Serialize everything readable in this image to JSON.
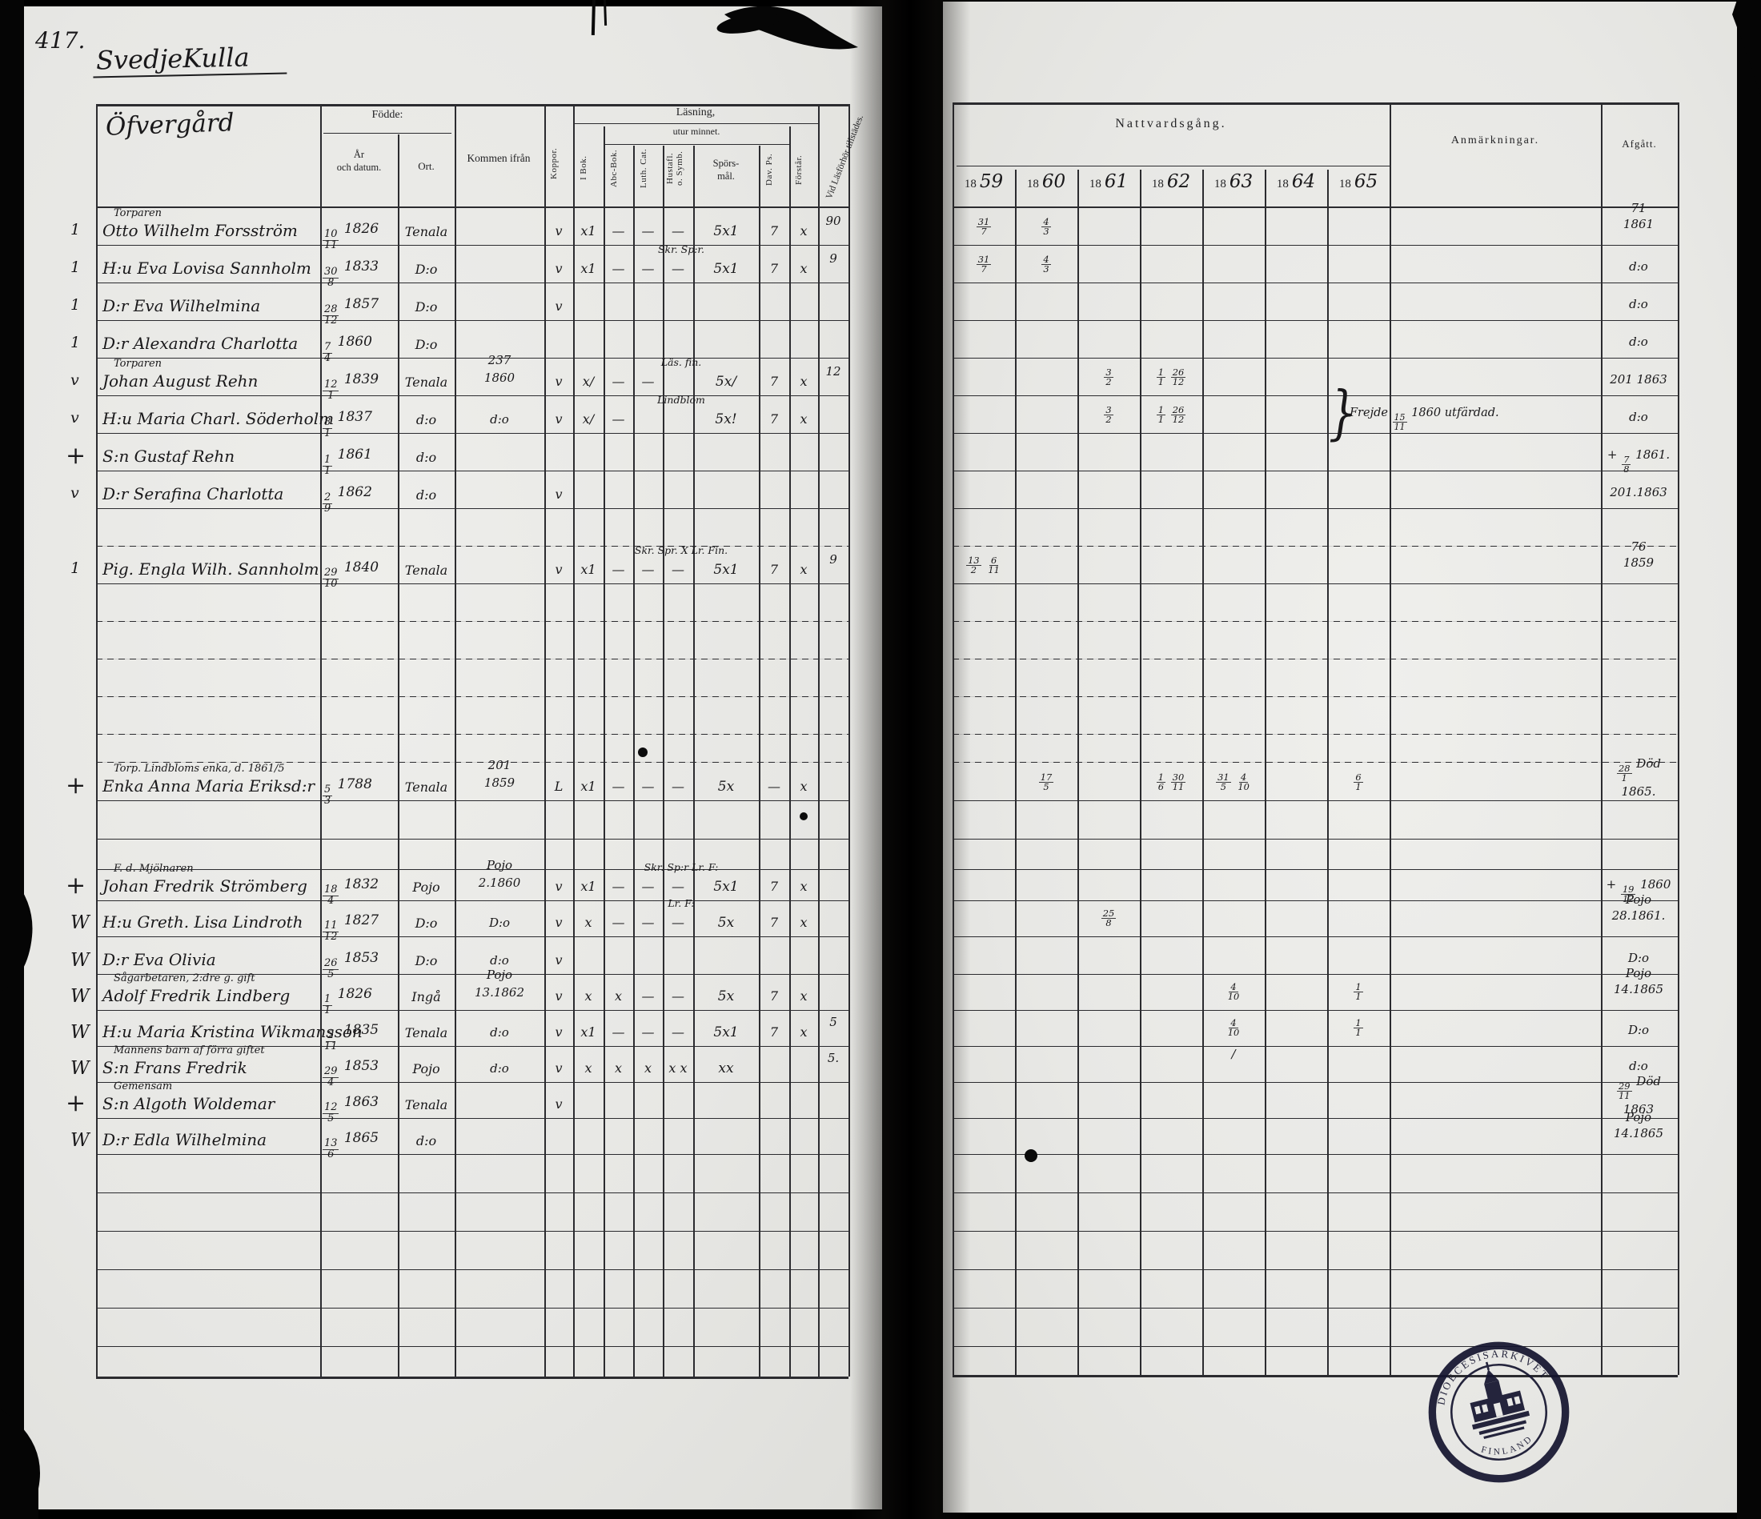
{
  "page_number": "417.",
  "title": "SvedjeKulla",
  "subtitle": "Öfvergård",
  "left_headers": {
    "fodde": "Födde:",
    "ar_och_datum": "År\noch datum.",
    "ort": "Ort.",
    "kommen_ifran": "Kommen ifrån",
    "koppor": "Koppor.",
    "lasning": "Läsning,",
    "utur_minnet": "utur minnet.",
    "i_bok": "I Bok.",
    "abc_bok": "Abc-Bok.",
    "luth_cat": "Luth. Cat.",
    "hustaflan": "Hustafl.\no. Symb.",
    "sporsmal": "Spörs-\nmål.",
    "dav_ps": "Dav. Ps.",
    "forstar": "Förstår.",
    "vid_lasforhor": "Vid Läsförhör tillstädes."
  },
  "right_headers": {
    "nattvardsgang": "Nattvardsgång.",
    "year_prefix": "18",
    "years": [
      "59",
      "60",
      "61",
      "62",
      "63",
      "64",
      "65"
    ],
    "anmarkningar": "Anmärkningar.",
    "afgatt": "Afgått."
  },
  "persons": [
    {
      "margin": "1",
      "label": "Torparen",
      "name": "Otto Wilhelm Forsström",
      "birth": "10/11 1826",
      "ort": "Tenala",
      "from": "",
      "marks": {
        "koppor": "v",
        "ibok": "x1",
        "abc": "—",
        "cat": "—",
        "hust": "—",
        "spors_note": "",
        "spors": "5x1",
        "davps": "7",
        "forstar": "x",
        "vidlas": "90"
      },
      "natt": {
        "1859": "31/7",
        "1860": "4/3"
      },
      "anm": "",
      "afgatt": "71\n1861"
    },
    {
      "margin": "1",
      "label": "",
      "name": "H:u Eva Lovisa Sannholm",
      "birth": "30/8 1833",
      "ort": "D:o",
      "from": "",
      "marks": {
        "koppor": "v",
        "ibok": "x1",
        "abc": "—",
        "cat": "—",
        "hust": "—",
        "spors_note": "Skr. Sp:r.",
        "spors": "5x1",
        "davps": "7",
        "forstar": "x",
        "vidlas": "9"
      },
      "natt": {
        "1859": "31/7",
        "1860": "4/3"
      },
      "anm": "",
      "afgatt": "d:o"
    },
    {
      "margin": "1",
      "label": "",
      "name": "D:r Eva Wilhelmina",
      "birth": "28/12 1857",
      "ort": "D:o",
      "from": "",
      "marks": {
        "koppor": "v",
        "ibok": "",
        "abc": "",
        "cat": "",
        "hust": "",
        "spors_note": "",
        "spors": "",
        "davps": "",
        "forstar": "",
        "vidlas": ""
      },
      "natt": {},
      "anm": "",
      "afgatt": "d:o"
    },
    {
      "margin": "1",
      "label": "",
      "name": "D:r Alexandra Charlotta",
      "birth": "7/4 1860",
      "ort": "D:o",
      "from": "",
      "marks": {
        "koppor": "",
        "ibok": "",
        "abc": "",
        "cat": "",
        "hust": "",
        "spors_note": "",
        "spors": "",
        "davps": "",
        "forstar": "",
        "vidlas": ""
      },
      "natt": {},
      "anm": "",
      "afgatt": "d:o"
    },
    {
      "margin": "v",
      "label": "Torparen",
      "name": "Johan August Rehn",
      "birth": "12/1 1839",
      "ort": "Tenala",
      "from": "237\n1860",
      "marks": {
        "koppor": "v",
        "ibok": "x/",
        "abc": "—",
        "cat": "—",
        "hust": "",
        "spors_note": "Läs. fin.",
        "spors": "5x/",
        "davps": "7",
        "forstar": "x",
        "vidlas": "12"
      },
      "natt": {
        "1861": "3/2",
        "1862": "1/1 26/12"
      },
      "anm": "Frejde 15/11 1860 utfärdad.",
      "afgatt": "201 1863"
    },
    {
      "margin": "v",
      "label": "",
      "name": "H:u Maria Charl. Söderholm",
      "birth": "8/1 1837",
      "ort": "d:o",
      "from": "d:o",
      "marks": {
        "koppor": "v",
        "ibok": "x/",
        "abc": "—",
        "cat": "",
        "hust": "",
        "spors_note": "Lindblom",
        "spors": "5x!",
        "davps": "7",
        "forstar": "x",
        "vidlas": ""
      },
      "natt": {
        "1861": "3/2",
        "1862": "1/1 26/12"
      },
      "anm": "",
      "afgatt": "d:o"
    },
    {
      "margin": "+",
      "label": "",
      "name": "S:n Gustaf Rehn",
      "birth": "1/1 1861",
      "ort": "d:o",
      "from": "",
      "marks": {
        "koppor": "",
        "ibok": "",
        "abc": "",
        "cat": "",
        "hust": "",
        "spors_note": "",
        "spors": "",
        "davps": "",
        "forstar": "",
        "vidlas": ""
      },
      "natt": {},
      "anm": "",
      "afgatt": "+ 7/8 1861."
    },
    {
      "margin": "v",
      "label": "",
      "name": "D:r Serafina Charlotta",
      "birth": "2/9 1862",
      "ort": "d:o",
      "from": "",
      "marks": {
        "koppor": "v",
        "ibok": "",
        "abc": "",
        "cat": "",
        "hust": "",
        "spors_note": "",
        "spors": "",
        "davps": "",
        "forstar": "",
        "vidlas": ""
      },
      "natt": {},
      "anm": "",
      "afgatt": "201.1863"
    },
    {
      "margin": "1",
      "label": "",
      "name": "Pig. Engla Wilh. Sannholm",
      "birth": "29/10 1840",
      "ort": "Tenala",
      "from": "",
      "marks": {
        "koppor": "v",
        "ibok": "x1",
        "abc": "—",
        "cat": "—",
        "hust": "—",
        "spors_note": "Skr. Spr. X Lr. Fin.",
        "spors": "5x1",
        "davps": "7",
        "forstar": "x",
        "vidlas": "9"
      },
      "natt": {
        "1859": "13/2 6/11"
      },
      "anm": "",
      "afgatt": "76\n1859"
    },
    {
      "margin": "+",
      "label": "Torp. Lindbloms enka, d. 1861/5",
      "name": "Enka Anna Maria Eriksd:r",
      "birth": "5/3 1788",
      "ort": "Tenala",
      "from": "201\n1859",
      "marks": {
        "koppor": "L",
        "ibok": "x1",
        "abc": "—",
        "cat": "—",
        "hust": "—",
        "spors_note": "",
        "spors": "5x",
        "davps": "—",
        "forstar": "x",
        "vidlas": ""
      },
      "natt": {
        "1860": "17/5",
        "1862": "1/6 30/11",
        "1863": "31/5 4/10",
        "1865": "6/1"
      },
      "anm": "",
      "afgatt": "28/1 Död\n1865."
    },
    {
      "margin": "+",
      "label": "F. d. Mjölnaren",
      "name": "Johan Fredrik Strömberg",
      "birth": "18/4 1832",
      "ort": "Pojo",
      "from": "Pojo\n2.1860",
      "marks": {
        "koppor": "v",
        "ibok": "x1",
        "abc": "—",
        "cat": "—",
        "hust": "—",
        "spors_note": "Skr. Sp:r Lr. F:",
        "spors": "5x1",
        "davps": "7",
        "forstar": "x",
        "vidlas": ""
      },
      "natt": {},
      "anm": "",
      "afgatt": "+ 19/12 1860"
    },
    {
      "margin": "W",
      "label": "",
      "name": "H:u Greth. Lisa Lindroth",
      "birth": "11/12 1827",
      "ort": "D:o",
      "from": "D:o",
      "marks": {
        "koppor": "v",
        "ibok": "x",
        "abc": "—",
        "cat": "—",
        "hust": "—",
        "spors_note": "Lr. F:",
        "spors": "5x",
        "davps": "7",
        "forstar": "x",
        "vidlas": ""
      },
      "natt": {
        "1861": "25/8"
      },
      "anm": "",
      "afgatt": "Pojo\n28.1861."
    },
    {
      "margin": "W",
      "label": "",
      "name": "D:r Eva Olivia",
      "birth": "26/5 1853",
      "ort": "D:o",
      "from": "d:o",
      "marks": {
        "koppor": "v",
        "ibok": "",
        "abc": "",
        "cat": "",
        "hust": "",
        "spors_note": "",
        "spors": "",
        "davps": "",
        "forstar": "",
        "vidlas": ""
      },
      "natt": {},
      "anm": "",
      "afgatt": "D:o"
    },
    {
      "margin": "W",
      "label": "Sågarbetaren, 2:dre g. gift",
      "name": "Adolf Fredrik Lindberg",
      "birth": "1/1 1826",
      "ort": "Ingå",
      "from": "Pojo\n13.1862",
      "marks": {
        "koppor": "v",
        "ibok": "x",
        "abc": "x",
        "cat": "—",
        "hust": "—",
        "spors_note": "",
        "spors": "5x",
        "davps": "7",
        "forstar": "x",
        "vidlas": ""
      },
      "natt": {
        "1863": "4/10",
        "1865": "1/1"
      },
      "anm": "",
      "afgatt": "Pojo\n14.1865"
    },
    {
      "margin": "W",
      "label": "",
      "name": "H:u Maria Kristina Wikmansson",
      "birth": "2/11 1835",
      "ort": "Tenala",
      "from": "d:o",
      "marks": {
        "koppor": "v",
        "ibok": "x1",
        "abc": "—",
        "cat": "—",
        "hust": "—",
        "spors_note": "",
        "spors": "5x1",
        "davps": "7",
        "forstar": "x",
        "vidlas": "5"
      },
      "natt": {
        "1863": "4/10",
        "1865": "1/1"
      },
      "anm": "",
      "afgatt": "D:o"
    },
    {
      "margin": "W",
      "label": "Mannens barn af förra giftet",
      "name": "S:n Frans Fredrik",
      "birth": "29/4 1853",
      "ort": "Pojo",
      "from": "d:o",
      "marks": {
        "koppor": "v",
        "ibok": "x",
        "abc": "x",
        "cat": "x",
        "hust": "x x",
        "spors_note": "",
        "spors": "xx",
        "davps": "",
        "forstar": "",
        "vidlas": "5."
      },
      "natt": {
        "1863": "/"
      },
      "anm": "",
      "afgatt": "d:o"
    },
    {
      "margin": "+",
      "label": "Gemensam",
      "name": "S:n Algoth Woldemar",
      "birth": "12/5 1863",
      "ort": "Tenala",
      "from": "",
      "marks": {
        "koppor": "v",
        "ibok": "",
        "abc": "",
        "cat": "",
        "hust": "",
        "spors_note": "",
        "spors": "",
        "davps": "",
        "forstar": "",
        "vidlas": ""
      },
      "natt": {},
      "anm": "",
      "afgatt": "29/11 Död\n1863"
    },
    {
      "margin": "W",
      "label": "",
      "name": "D:r Edla Wilhelmina",
      "birth": "13/6 1865",
      "ort": "d:o",
      "from": "",
      "marks": {
        "koppor": "",
        "ibok": "",
        "abc": "",
        "cat": "",
        "hust": "",
        "spors_note": "",
        "spors": "",
        "davps": "",
        "forstar": "",
        "vidlas": ""
      },
      "natt": {},
      "anm": "",
      "afgatt": "Pojo\n14.1865"
    }
  ],
  "stamp": {
    "top_text": "DIOECESISARKIVET",
    "bottom_text": "FINLAND"
  }
}
